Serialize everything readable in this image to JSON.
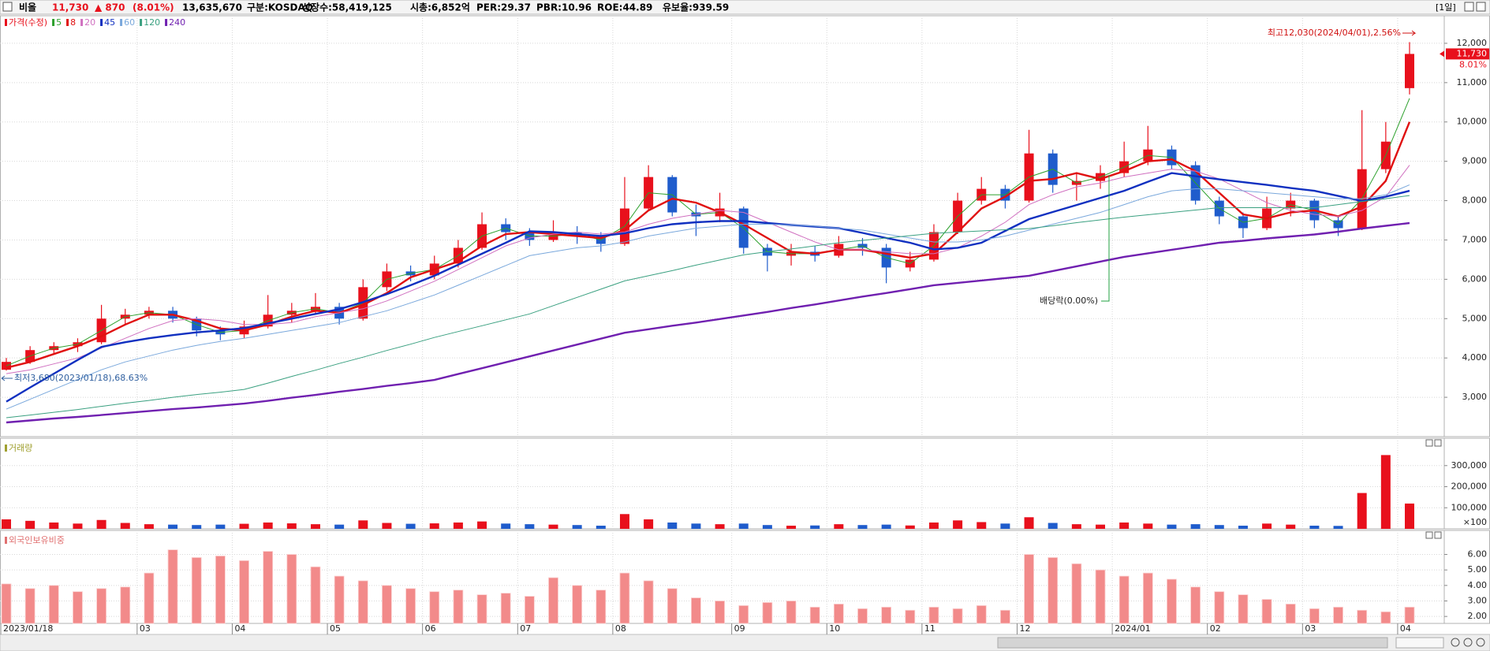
{
  "header": {
    "name": "비올",
    "price": "11,730",
    "change": "▲ 870",
    "change_pct": "(8.01%)",
    "volume": "13,635,670",
    "market": "구분:KOSDAQ",
    "shares": "상장수:58,419,125",
    "market_cap": "시총:6,852억",
    "per": "PER:29.37",
    "pbr": "PBR:10.96",
    "roe": "ROE:44.89",
    "reserve": "유보율:939.59",
    "period": "[1일]"
  },
  "chart_data": [
    {
      "type": "candlestick",
      "price_label": "가격(수정)",
      "up_color": "#e8101c",
      "down_color": "#1f5ccc",
      "categories": [
        "2023/01/18",
        null,
        null,
        null,
        null,
        null,
        "03",
        null,
        null,
        null,
        "04",
        null,
        null,
        null,
        "05",
        null,
        null,
        null,
        "06",
        null,
        null,
        null,
        "07",
        null,
        null,
        null,
        "08",
        null,
        null,
        null,
        null,
        "09",
        null,
        null,
        null,
        "10",
        null,
        null,
        null,
        "11",
        null,
        null,
        null,
        "12",
        null,
        null,
        null,
        "2024/01",
        null,
        null,
        null,
        "02",
        null,
        null,
        null,
        "03",
        null,
        null,
        null,
        "04"
      ],
      "ohlc": [
        [
          3700,
          4000,
          3680,
          3900
        ],
        [
          3900,
          4300,
          3850,
          4200
        ],
        [
          4200,
          4400,
          4100,
          4300
        ],
        [
          4300,
          4500,
          4150,
          4400
        ],
        [
          4400,
          5350,
          4350,
          5000
        ],
        [
          5000,
          5250,
          4850,
          5100
        ],
        [
          5100,
          5300,
          5000,
          5200
        ],
        [
          5200,
          5300,
          4900,
          5000
        ],
        [
          5000,
          5050,
          4550,
          4700
        ],
        [
          4700,
          4800,
          4450,
          4600
        ],
        [
          4600,
          4950,
          4500,
          4800
        ],
        [
          4800,
          5600,
          4750,
          5100
        ],
        [
          5100,
          5400,
          4900,
          5200
        ],
        [
          5200,
          5650,
          5100,
          5300
        ],
        [
          5300,
          5400,
          4850,
          5000
        ],
        [
          5000,
          6000,
          4950,
          5800
        ],
        [
          5800,
          6400,
          5700,
          6200
        ],
        [
          6200,
          6350,
          5950,
          6100
        ],
        [
          6100,
          6600,
          6000,
          6400
        ],
        [
          6400,
          7000,
          6300,
          6800
        ],
        [
          6800,
          7700,
          6750,
          7400
        ],
        [
          7400,
          7550,
          7000,
          7200
        ],
        [
          7200,
          7300,
          6850,
          7000
        ],
        [
          7000,
          7500,
          6950,
          7200
        ],
        [
          7200,
          7350,
          6900,
          7100
        ],
        [
          7100,
          7200,
          6700,
          6900
        ],
        [
          6900,
          8600,
          6850,
          7800
        ],
        [
          7800,
          8900,
          7750,
          8600
        ],
        [
          8600,
          8650,
          7600,
          7700
        ],
        [
          7700,
          7900,
          7100,
          7600
        ],
        [
          7600,
          8200,
          7450,
          7800
        ],
        [
          7800,
          7850,
          6650,
          6800
        ],
        [
          6800,
          6900,
          6200,
          6600
        ],
        [
          6600,
          6900,
          6350,
          6700
        ],
        [
          6700,
          6850,
          6450,
          6600
        ],
        [
          6600,
          7100,
          6550,
          6900
        ],
        [
          6900,
          7050,
          6600,
          6800
        ],
        [
          6800,
          6900,
          5900,
          6300
        ],
        [
          6300,
          6700,
          6200,
          6500
        ],
        [
          6500,
          7400,
          6450,
          7200
        ],
        [
          7200,
          8200,
          7150,
          8000
        ],
        [
          8000,
          8600,
          7900,
          8300
        ],
        [
          8300,
          8400,
          7800,
          8000
        ],
        [
          8000,
          9800,
          7950,
          9200
        ],
        [
          9200,
          9300,
          8200,
          8400
        ],
        [
          8400,
          8700,
          8000,
          8500
        ],
        [
          8500,
          8900,
          8300,
          8700
        ],
        [
          8700,
          9500,
          8600,
          9000
        ],
        [
          9000,
          9900,
          8900,
          9300
        ],
        [
          9300,
          9400,
          8800,
          8900
        ],
        [
          8900,
          9000,
          7900,
          8000
        ],
        [
          8000,
          8100,
          7400,
          7600
        ],
        [
          7600,
          7700,
          7050,
          7300
        ],
        [
          7300,
          8100,
          7250,
          7800
        ],
        [
          7800,
          8200,
          7600,
          8000
        ],
        [
          8000,
          8050,
          7300,
          7500
        ],
        [
          7500,
          7600,
          7100,
          7300
        ],
        [
          7300,
          10300,
          7250,
          8800
        ],
        [
          8800,
          10000,
          8700,
          9500
        ],
        [
          10860,
          12030,
          10700,
          11730
        ]
      ],
      "series": [
        {
          "name": "5",
          "color": "#2ca02c",
          "width": 1,
          "values": [
            3800,
            4050,
            4250,
            4350,
            4700,
            5050,
            5150,
            5100,
            4850,
            4650,
            4700,
            4950,
            5150,
            5250,
            5150,
            5400,
            6000,
            6150,
            6250,
            6600,
            7100,
            7300,
            7100,
            7100,
            7150,
            7000,
            7350,
            8200,
            8150,
            7650,
            7700,
            7300,
            6700,
            6650,
            6650,
            6750,
            6850,
            6550,
            6400,
            6850,
            7600,
            8150,
            8150,
            8600,
            8800,
            8450,
            8600,
            8850,
            9150,
            9100,
            8450,
            7800,
            7450,
            7550,
            7900,
            7750,
            7400,
            8050,
            9150,
            10600
          ]
        },
        {
          "name": "8",
          "color": "#e01010",
          "width": 2.4,
          "values": [
            3750,
            3900,
            4100,
            4300,
            4550,
            4850,
            5100,
            5100,
            4950,
            4750,
            4700,
            4850,
            5050,
            5200,
            5150,
            5350,
            5650,
            6050,
            6250,
            6450,
            6850,
            7150,
            7200,
            7150,
            7100,
            7050,
            7250,
            7750,
            8050,
            7950,
            7700,
            7400,
            7050,
            6700,
            6650,
            6750,
            6750,
            6650,
            6550,
            6650,
            7200,
            7800,
            8100,
            8500,
            8550,
            8700,
            8550,
            8750,
            9000,
            9050,
            8750,
            8200,
            7650,
            7550,
            7700,
            7750,
            7600,
            7850,
            8500,
            10000
          ]
        },
        {
          "name": "20",
          "color": "#d070c0",
          "width": 1,
          "values": [
            3600,
            3700,
            3850,
            4000,
            4250,
            4500,
            4750,
            4950,
            5000,
            4950,
            4850,
            4850,
            4900,
            5050,
            5150,
            5250,
            5450,
            5700,
            5950,
            6250,
            6550,
            6850,
            7050,
            7150,
            7200,
            7150,
            7200,
            7400,
            7550,
            7650,
            7750,
            7700,
            7450,
            7200,
            6950,
            6750,
            6750,
            6700,
            6650,
            6650,
            6800,
            7100,
            7450,
            7900,
            8150,
            8350,
            8450,
            8600,
            8700,
            8800,
            8750,
            8550,
            8250,
            7950,
            7750,
            7650,
            7600,
            7750,
            8100,
            8900
          ]
        },
        {
          "name": "45",
          "color": "#1030c0",
          "width": 2.4,
          "values": [
            2890,
            3250,
            3600,
            3950,
            4280,
            4400,
            4500,
            4580,
            4650,
            4700,
            4760,
            4880,
            5000,
            5120,
            5240,
            5420,
            5620,
            5850,
            6090,
            6370,
            6650,
            6930,
            7220,
            7200,
            7150,
            7100,
            7170,
            7300,
            7400,
            7450,
            7480,
            7480,
            7430,
            7380,
            7340,
            7300,
            7180,
            7050,
            6930,
            6760,
            6800,
            6930,
            7230,
            7530,
            7710,
            7890,
            8070,
            8250,
            8480,
            8700,
            8620,
            8540,
            8470,
            8400,
            8320,
            8250,
            8120,
            7990,
            8100,
            8250
          ]
        },
        {
          "name": "60",
          "color": "#7aa8dc",
          "width": 1,
          "values": [
            2700,
            2950,
            3200,
            3450,
            3700,
            3900,
            4050,
            4200,
            4320,
            4420,
            4500,
            4600,
            4700,
            4800,
            4900,
            5050,
            5200,
            5400,
            5600,
            5850,
            6100,
            6350,
            6600,
            6700,
            6800,
            6850,
            6950,
            7100,
            7200,
            7300,
            7350,
            7400,
            7400,
            7380,
            7350,
            7300,
            7250,
            7150,
            7050,
            6950,
            6950,
            7000,
            7100,
            7250,
            7400,
            7550,
            7700,
            7900,
            8100,
            8250,
            8300,
            8300,
            8250,
            8200,
            8150,
            8100,
            8050,
            8050,
            8150,
            8400
          ]
        },
        {
          "name": "120",
          "color": "#3aa080",
          "width": 1,
          "values": [
            2480,
            2550,
            2620,
            2690,
            2770,
            2850,
            2920,
            3000,
            3070,
            3130,
            3200,
            3360,
            3530,
            3690,
            3860,
            4020,
            4190,
            4350,
            4520,
            4670,
            4820,
            4970,
            5120,
            5330,
            5540,
            5750,
            5960,
            6090,
            6220,
            6360,
            6490,
            6620,
            6700,
            6770,
            6850,
            6930,
            6990,
            7050,
            7110,
            7170,
            7200,
            7230,
            7260,
            7290,
            7360,
            7440,
            7510,
            7580,
            7640,
            7700,
            7760,
            7820,
            7820,
            7820,
            7820,
            7820,
            7900,
            7980,
            8050,
            8130
          ]
        },
        {
          "name": "240",
          "color": "#7020b0",
          "width": 2.4,
          "values": [
            2360,
            2410,
            2460,
            2500,
            2550,
            2600,
            2650,
            2700,
            2740,
            2790,
            2840,
            2910,
            2990,
            3060,
            3140,
            3210,
            3290,
            3360,
            3440,
            3590,
            3740,
            3890,
            4040,
            4190,
            4340,
            4490,
            4640,
            4730,
            4820,
            4900,
            4990,
            5080,
            5170,
            5270,
            5360,
            5460,
            5560,
            5650,
            5750,
            5850,
            5910,
            5970,
            6030,
            6090,
            6210,
            6330,
            6450,
            6570,
            6660,
            6750,
            6840,
            6930,
            6980,
            7040,
            7090,
            7140,
            7210,
            7290,
            7360,
            7430
          ]
        }
      ],
      "ylim": [
        2000,
        12700
      ],
      "yticks": [
        {
          "value": 3000,
          "label": "3,000"
        },
        {
          "value": 4000,
          "label": "4,000"
        },
        {
          "value": 5000,
          "label": "5,000"
        },
        {
          "value": 6000,
          "label": "6,000"
        },
        {
          "value": 7000,
          "label": "7,000"
        },
        {
          "value": 8000,
          "label": "8,000"
        },
        {
          "value": 9000,
          "label": "9,000"
        },
        {
          "value": 10000,
          "label": "10,000"
        },
        {
          "value": 11000,
          "label": "11,000"
        },
        {
          "value": 12000,
          "label": "12,000"
        }
      ],
      "grid": true,
      "last": {
        "value": 11730,
        "label": "11,730"
      },
      "last_change": "8.01%",
      "annotations": {
        "high": "최고12,030(2024/04/01),2.56%",
        "low": "최저3,680(2023/01/18),68.63%",
        "dividend": "배당락(0.00%)"
      }
    },
    {
      "type": "bar",
      "title": "거래량",
      "title_color": "#a0a030",
      "up_color": "#e8101c",
      "down_color": "#1f5ccc",
      "values": [
        45000,
        38000,
        30000,
        25000,
        42000,
        28000,
        22000,
        20000,
        18000,
        20000,
        24000,
        30000,
        26000,
        22000,
        20000,
        40000,
        28000,
        24000,
        26000,
        30000,
        35000,
        25000,
        22000,
        20000,
        18000,
        15000,
        70000,
        45000,
        30000,
        25000,
        22000,
        25000,
        18000,
        15000,
        16000,
        22000,
        18000,
        20000,
        16000,
        30000,
        40000,
        32000,
        25000,
        55000,
        28000,
        22000,
        20000,
        30000,
        25000,
        20000,
        22000,
        18000,
        15000,
        25000,
        20000,
        15000,
        14000,
        170000,
        350000,
        120000
      ],
      "ylim": [
        0,
        430000
      ],
      "yticks": [
        {
          "value": 100000,
          "label": "100,000"
        },
        {
          "value": 200000,
          "label": "200,000"
        },
        {
          "value": 300000,
          "label": "300,000"
        }
      ],
      "unit": "×100",
      "grid": true
    },
    {
      "type": "bar",
      "title": "외국인보유비중",
      "title_color": "#e07070",
      "color": "#f28a8a",
      "values": [
        4.1,
        3.8,
        4.0,
        3.6,
        3.8,
        3.9,
        4.8,
        6.3,
        5.8,
        5.9,
        5.6,
        6.2,
        6.0,
        5.2,
        4.6,
        4.3,
        4.0,
        3.8,
        3.6,
        3.7,
        3.4,
        3.5,
        3.3,
        4.5,
        4.0,
        3.7,
        4.8,
        4.3,
        3.8,
        3.2,
        3.0,
        2.7,
        2.9,
        3.0,
        2.6,
        2.8,
        2.5,
        2.6,
        2.4,
        2.6,
        2.5,
        2.7,
        2.4,
        6.0,
        5.8,
        5.4,
        5.0,
        4.6,
        4.8,
        4.4,
        3.9,
        3.6,
        3.4,
        3.1,
        2.8,
        2.5,
        2.6,
        2.4,
        2.3,
        2.6
      ],
      "ylim": [
        1.55,
        7.55
      ],
      "yticks": [
        {
          "value": 2,
          "label": "2.00"
        },
        {
          "value": 3,
          "label": "3.00"
        },
        {
          "value": 4,
          "label": "4.00"
        },
        {
          "value": 5,
          "label": "5.00"
        },
        {
          "value": 6,
          "label": "6.00"
        }
      ],
      "grid": true
    }
  ]
}
